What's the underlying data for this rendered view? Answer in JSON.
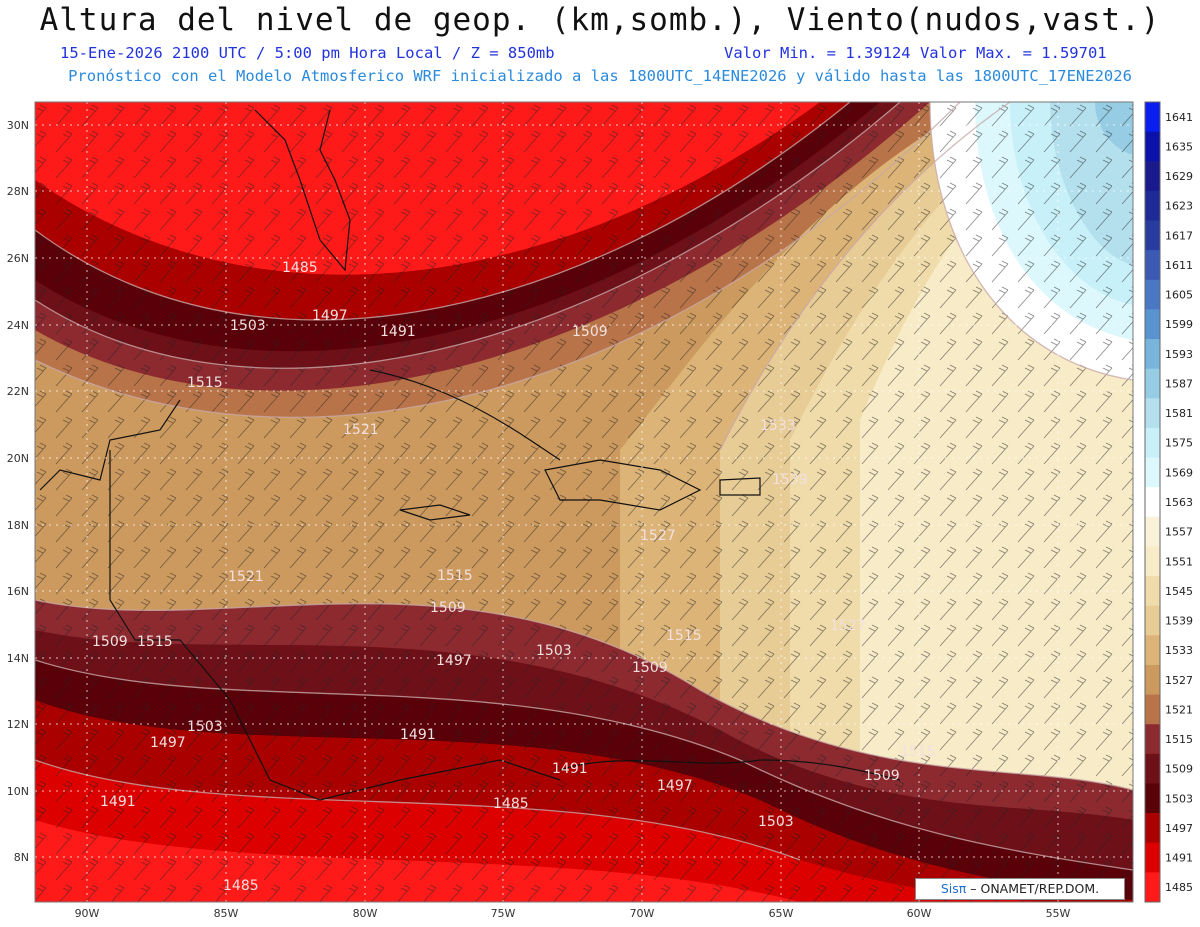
{
  "header": {
    "title": "Altura del nivel de geop. (km,somb.), Viento(nudos,vast.)",
    "subtitle_left": "15-Ene-2026  2100 UTC / 5:00 pm Hora Local / Z = 850mb",
    "subtitle_right": "Valor Min. = 1.39124  Valor Max. = 1.59701",
    "forecast_line": "Pronóstico con el Modelo Atmosferico WRF inicializado a las 1800UTC_14ENE2026 y válido hasta las  1800UTC_17ENE2026"
  },
  "map": {
    "lon_labels": [
      "90W",
      "85W",
      "80W",
      "75W",
      "70W",
      "65W",
      "60W",
      "55W"
    ],
    "lat_labels": [
      "30N",
      "28N",
      "26N",
      "24N",
      "22N",
      "20N",
      "18N",
      "16N",
      "14N",
      "12N",
      "10N",
      "8N"
    ],
    "contour_labels": [
      "1485",
      "1491",
      "1497",
      "1503",
      "1509",
      "1515",
      "1521",
      "1527",
      "1533",
      "1539"
    ]
  },
  "colorbar": {
    "levels": [
      "1641",
      "1635",
      "1629",
      "1623",
      "1617",
      "1611",
      "1605",
      "1599",
      "1593",
      "1587",
      "1581",
      "1575",
      "1569",
      "1563",
      "1557",
      "1551",
      "1545",
      "1539",
      "1533",
      "1527",
      "1521",
      "1515",
      "1509",
      "1503",
      "1497",
      "1491",
      "1485"
    ],
    "colors": [
      "#0a1ef0",
      "#0a12aa",
      "#1a1a8c",
      "#1e2a96",
      "#283ca0",
      "#3c5ab4",
      "#4a78c4",
      "#5a94d0",
      "#78b4dc",
      "#96cce4",
      "#b4e0ee",
      "#c8f0f8",
      "#dcf8fc",
      "#ffffff",
      "#faf2d8",
      "#f8ecc8",
      "#f0dcaa",
      "#e8cc96",
      "#dcb478",
      "#cc9a5e",
      "#b87448",
      "#8c2a30",
      "#6e1018",
      "#5a0008",
      "#aa0000",
      "#dc0000",
      "#ff1a1a"
    ]
  },
  "credit": {
    "brand": "Sisπ",
    "org": " – ONAMET/REP.DOM."
  }
}
